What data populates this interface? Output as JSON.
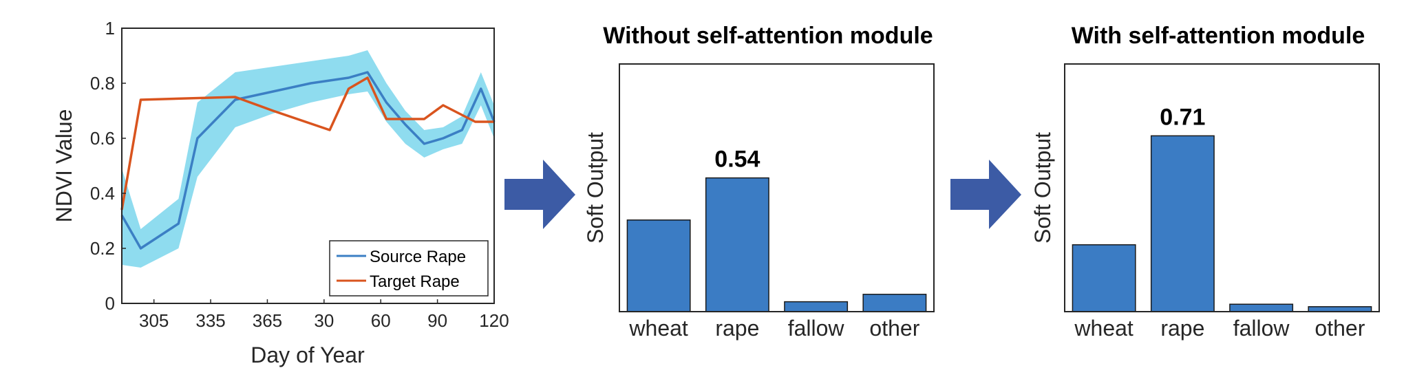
{
  "colors": {
    "source_line": "#3b7fc4",
    "source_band": "#8fdcef",
    "target_line": "#d9541e",
    "bar": "#3b7cc4",
    "arrow": "#3c5ba5",
    "axis": "#262626"
  },
  "icons": [
    "arrow-right-icon",
    "arrow-right-icon"
  ],
  "chart_data": [
    {
      "type": "line",
      "title": "",
      "xlabel": "Day of Year",
      "ylabel": "NDVI Value",
      "ylim": [
        0,
        1
      ],
      "y_ticks": [
        "0",
        "0.2",
        "0.4",
        "0.6",
        "0.8",
        "1"
      ],
      "x_ticks": [
        "305",
        "335",
        "365",
        "30",
        "60",
        "90",
        "120"
      ],
      "x_tick_positions": [
        305,
        335,
        365,
        395,
        425,
        455,
        485
      ],
      "xlim": [
        288,
        485
      ],
      "grid": false,
      "legend_position": "bottom-right",
      "series": [
        {
          "name": "Source Rape",
          "x": [
            288,
            298,
            318,
            328,
            348,
            368,
            388,
            408,
            418,
            428,
            438,
            448,
            458,
            468,
            478,
            485
          ],
          "y": [
            0.32,
            0.2,
            0.29,
            0.6,
            0.74,
            0.77,
            0.8,
            0.82,
            0.84,
            0.73,
            0.65,
            0.58,
            0.6,
            0.63,
            0.78,
            0.66
          ],
          "y_lower": [
            0.14,
            0.13,
            0.2,
            0.46,
            0.64,
            0.69,
            0.73,
            0.76,
            0.77,
            0.66,
            0.58,
            0.53,
            0.56,
            0.58,
            0.72,
            0.6
          ],
          "y_upper": [
            0.49,
            0.27,
            0.38,
            0.73,
            0.84,
            0.86,
            0.88,
            0.9,
            0.92,
            0.8,
            0.7,
            0.63,
            0.64,
            0.68,
            0.84,
            0.72
          ]
        },
        {
          "name": "Target Rape",
          "x": [
            288,
            298,
            348,
            368,
            398,
            408,
            418,
            428,
            448,
            458,
            475,
            485
          ],
          "y": [
            0.34,
            0.74,
            0.75,
            0.7,
            0.63,
            0.78,
            0.82,
            0.67,
            0.67,
            0.72,
            0.66,
            0.66
          ]
        }
      ]
    },
    {
      "type": "bar",
      "title": "Without self-attention module",
      "ylabel": "Soft Output",
      "categories": [
        "wheat",
        "rape",
        "fallow",
        "other"
      ],
      "values": [
        0.37,
        0.54,
        0.04,
        0.07
      ],
      "data_labels": [
        "",
        "0.54",
        "",
        ""
      ],
      "ylim": [
        0,
        1
      ]
    },
    {
      "type": "bar",
      "title": "With self-attention module",
      "ylabel": "Soft Output",
      "categories": [
        "wheat",
        "rape",
        "fallow",
        "other"
      ],
      "values": [
        0.27,
        0.71,
        0.03,
        0.02
      ],
      "data_labels": [
        "",
        "0.71",
        "",
        ""
      ],
      "ylim": [
        0,
        1
      ]
    }
  ]
}
